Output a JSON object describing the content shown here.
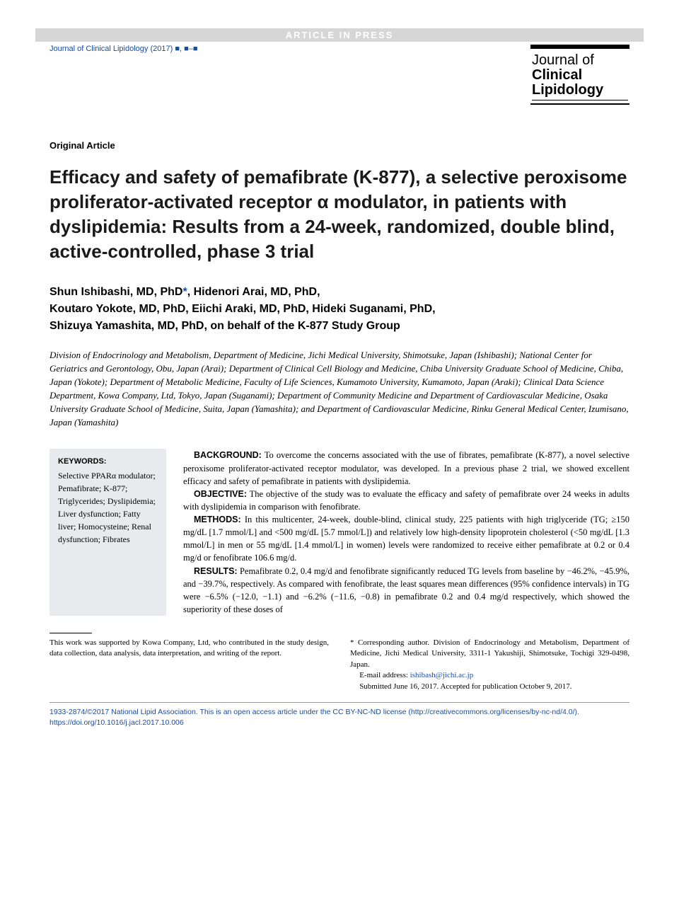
{
  "banner": "ARTICLE IN PRESS",
  "journalRef": "Journal of Clinical Lipidology (2017) ■, ■–■",
  "logo": {
    "l1": "Journal of",
    "l2": "Clinical",
    "l3": "Lipidology"
  },
  "articleType": "Original Article",
  "title": "Efficacy and safety of pemafibrate (K-877), a selective peroxisome proliferator-activated receptor α modulator, in patients with dyslipidemia: Results from a 24-week, randomized, double blind, active-controlled, phase 3 trial",
  "authors": "Shun Ishibashi, MD, PhD*, Hidenori Arai, MD, PhD, Koutaro Yokote, MD, PhD, Eiichi Araki, MD, PhD, Hideki Suganami, PhD, Shizuya Yamashita, MD, PhD, on behalf of the K-877 Study Group",
  "affiliations": "Division of Endocrinology and Metabolism, Department of Medicine, Jichi Medical University, Shimotsuke, Japan (Ishibashi); National Center for Geriatrics and Gerontology, Obu, Japan (Arai); Department of Clinical Cell Biology and Medicine, Chiba University Graduate School of Medicine, Chiba, Japan (Yokote); Department of Metabolic Medicine, Faculty of Life Sciences, Kumamoto University, Kumamoto, Japan (Araki); Clinical Data Science Department, Kowa Company, Ltd, Tokyo, Japan (Suganami); Department of Community Medicine and Department of Cardiovascular Medicine, Osaka University Graduate School of Medicine, Suita, Japan (Yamashita); and Department of Cardiovascular Medicine, Rinku General Medical Center, Izumisano, Japan (Yamashita)",
  "keywords": {
    "heading": "KEYWORDS:",
    "list": "Selective PPARα modulator; Pemafibrate; K-877; Triglycerides; Dyslipidemia; Liver dysfunction; Fatty liver; Homocysteine; Renal dysfunction; Fibrates"
  },
  "abstract": {
    "background": {
      "label": "BACKGROUND:",
      "text": " To overcome the concerns associated with the use of fibrates, pemafibrate (K-877), a novel selective peroxisome proliferator-activated receptor modulator, was developed. In a previous phase 2 trial, we showed excellent efficacy and safety of pemafibrate in patients with dyslipidemia."
    },
    "objective": {
      "label": "OBJECTIVE:",
      "text": " The objective of the study was to evaluate the efficacy and safety of pemafibrate over 24 weeks in adults with dyslipidemia in comparison with fenofibrate."
    },
    "methods": {
      "label": "METHODS:",
      "text": " In this multicenter, 24-week, double-blind, clinical study, 225 patients with high triglyceride (TG; ≥150 mg/dL [1.7 mmol/L] and <500 mg/dL [5.7 mmol/L]) and relatively low high-density lipoprotein cholesterol (<50 mg/dL [1.3 mmol/L] in men or 55 mg/dL [1.4 mmol/L] in women) levels were randomized to receive either pemafibrate at 0.2 or 0.4 mg/d or fenofibrate 106.6 mg/d."
    },
    "results": {
      "label": "RESULTS:",
      "text": " Pemafibrate 0.2, 0.4 mg/d and fenofibrate significantly reduced TG levels from baseline by −46.2%, −45.9%, and −39.7%, respectively. As compared with fenofibrate, the least squares mean differences (95% confidence intervals) in TG were −6.5% (−12.0, −1.1) and −6.2% (−11.6, −0.8) in pemafibrate 0.2 and 0.4 mg/d respectively, which showed the superiority of these doses of"
    }
  },
  "footnotes": {
    "funding": "This work was supported by Kowa Company, Ltd, who contributed in the study design, data collection, data analysis, data interpretation, and writing of the report.",
    "corresponding": "* Corresponding author. Division of Endocrinology and Metabolism, Department of Medicine, Jichi Medical University, 3311-1 Yakushiji, Shimotsuke, Tochigi 329-0498, Japan.",
    "emailLabel": "E-mail address:",
    "email": "ishibash@jichi.ac.jp",
    "submitted": "Submitted June 16, 2017. Accepted for publication October 9, 2017."
  },
  "copyright": {
    "text1": "1933-2874/©2017 National Lipid Association. This is an open access article under the CC BY-NC-ND license (",
    "licenseUrl": "http://creativecommons.org/licenses/by-nc-nd/4.0/",
    "text2": ").",
    "doi": "https://doi.org/10.1016/j.jacl.2017.10.006"
  },
  "colors": {
    "link": "#1a4b9b",
    "bannerBg": "#d6d6d6",
    "keywordsBg": "#e8eaed",
    "text": "#000000"
  }
}
